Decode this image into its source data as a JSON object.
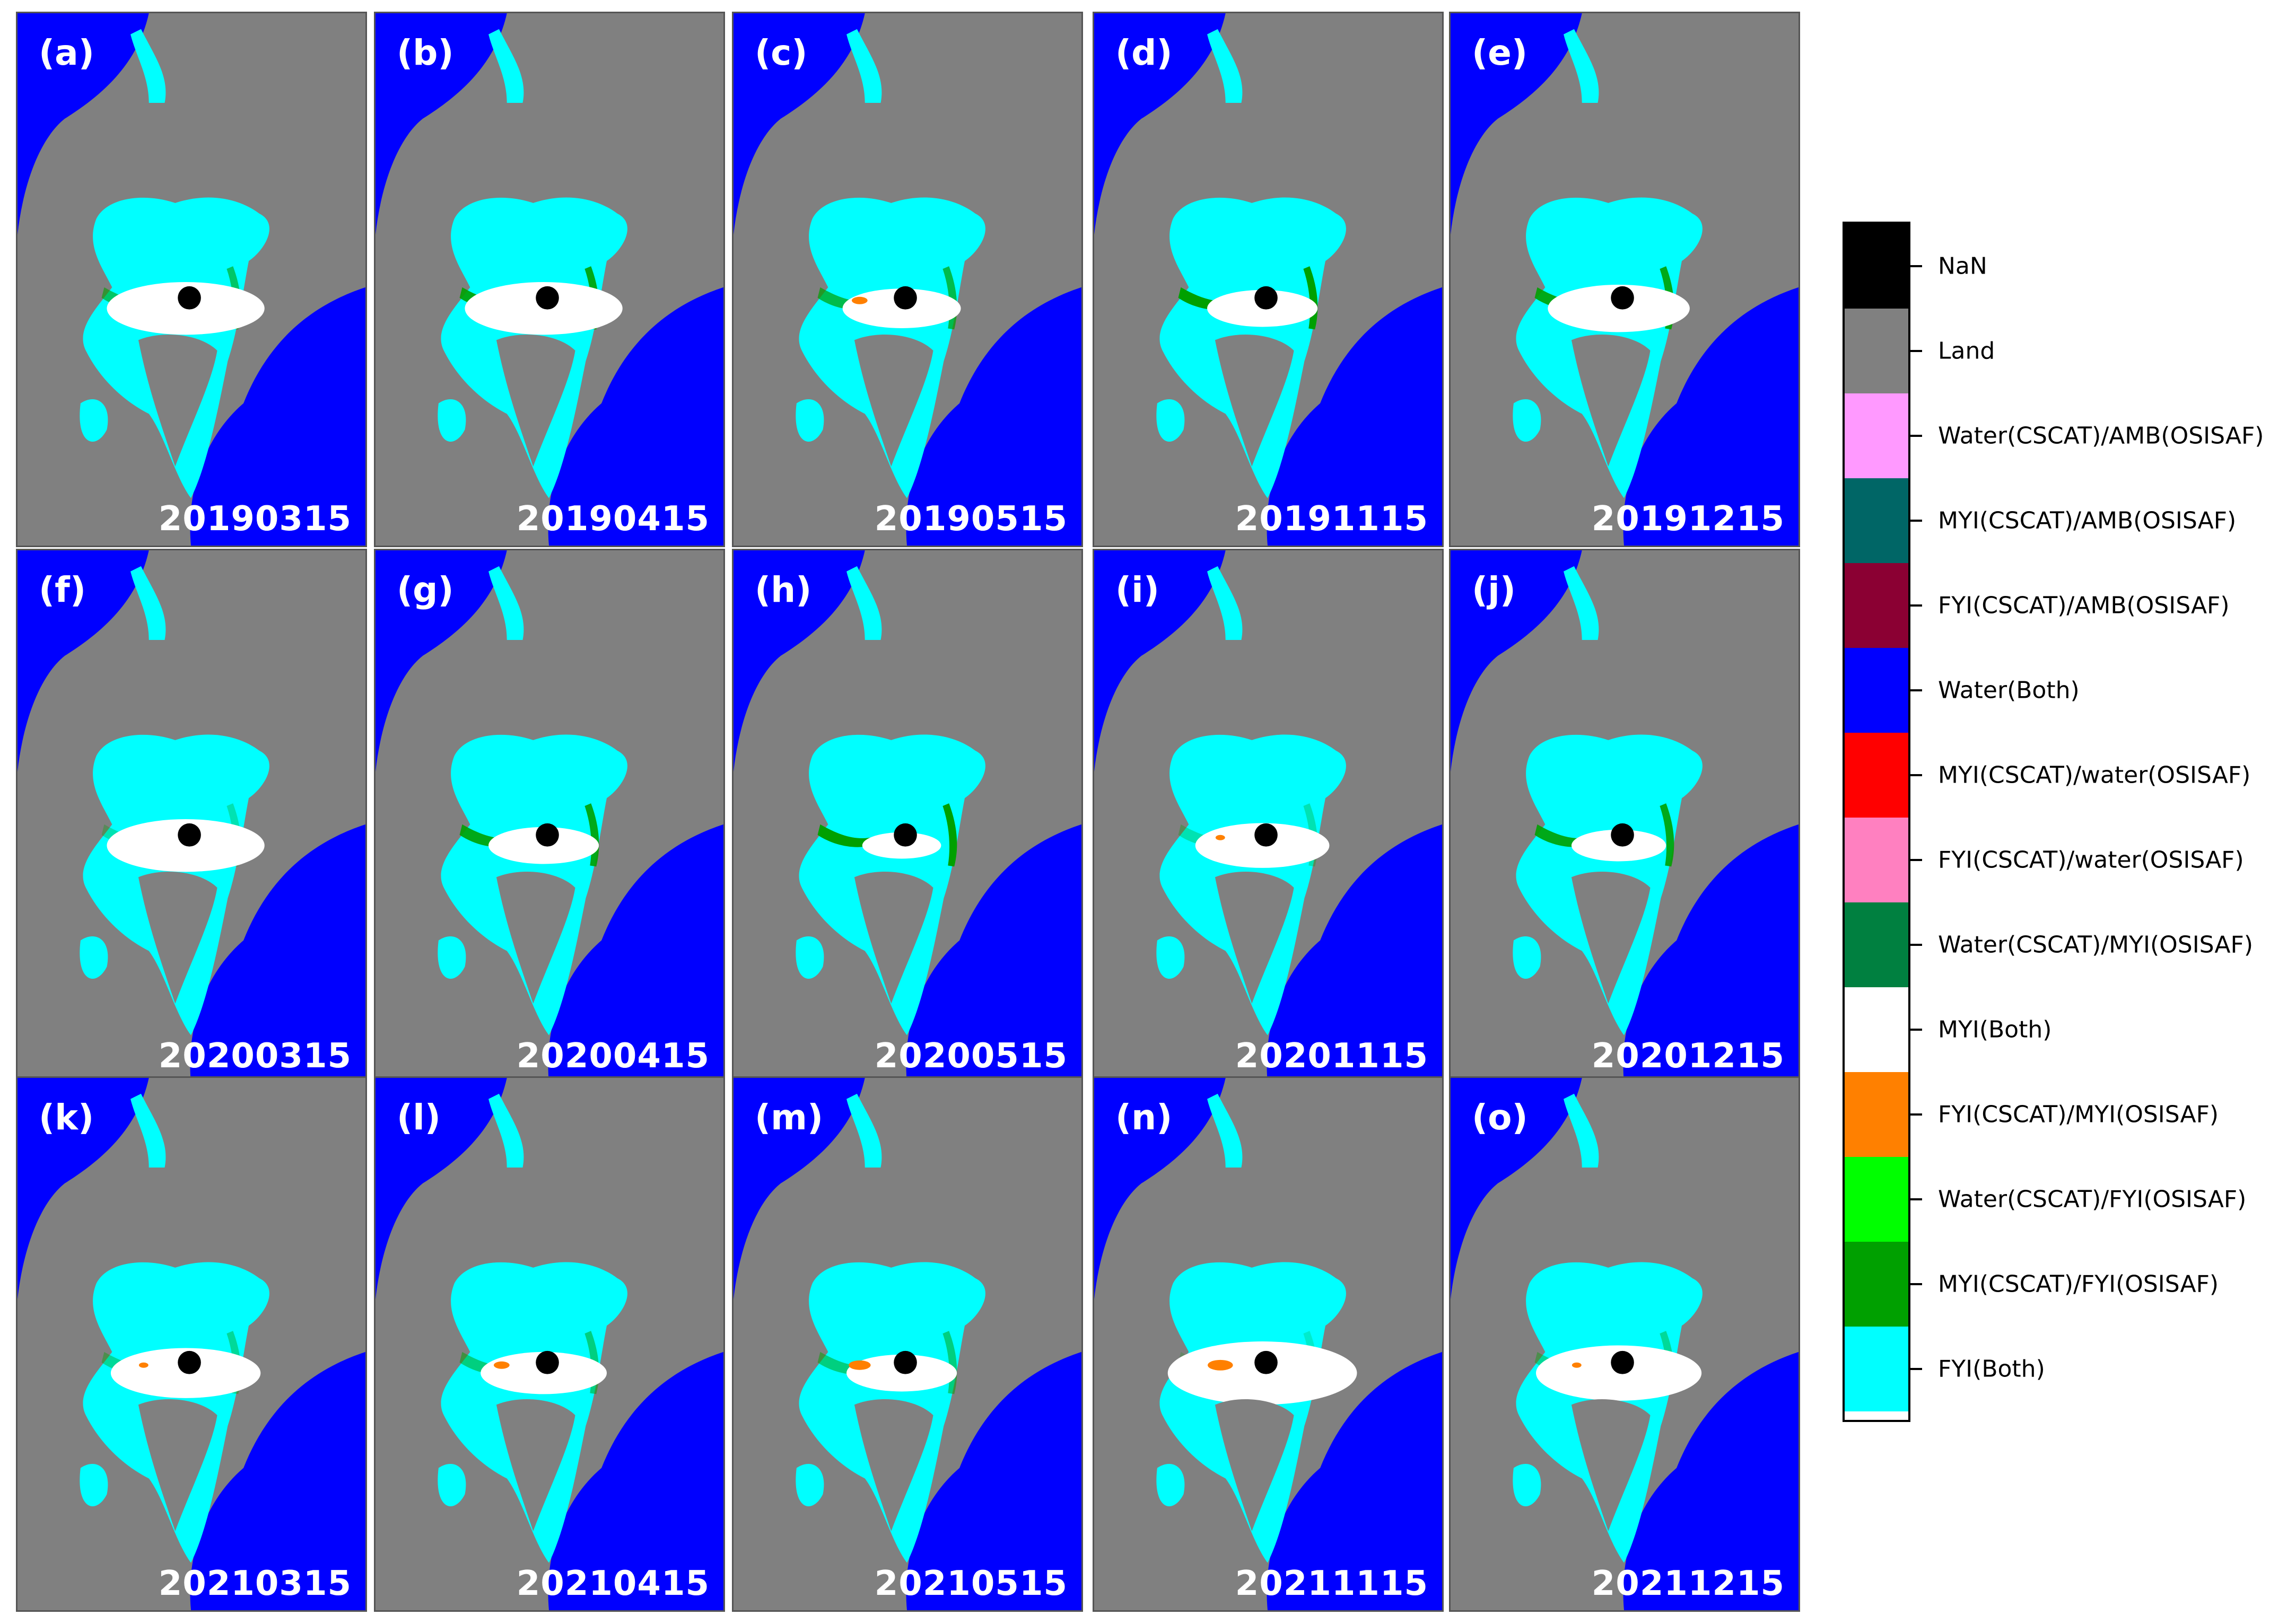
{
  "figure": {
    "panels": [
      {
        "letter": "(a)",
        "date": "20190315",
        "white": 1.0,
        "green": 0.6,
        "orange": 0.0
      },
      {
        "letter": "(b)",
        "date": "20190415",
        "white": 1.0,
        "green": 0.9,
        "orange": 0.0
      },
      {
        "letter": "(c)",
        "date": "20190515",
        "white": 0.75,
        "green": 0.7,
        "orange": 0.3
      },
      {
        "letter": "(d)",
        "date": "20191115",
        "white": 0.7,
        "green": 1.0,
        "orange": 0.0
      },
      {
        "letter": "(e)",
        "date": "20191215",
        "white": 0.9,
        "green": 0.9,
        "orange": 0.0
      },
      {
        "letter": "(f)",
        "date": "20200315",
        "white": 1.0,
        "green": 0.3,
        "orange": 0.0
      },
      {
        "letter": "(g)",
        "date": "20200415",
        "white": 0.7,
        "green": 0.9,
        "orange": 0.0
      },
      {
        "letter": "(h)",
        "date": "20200515",
        "white": 0.5,
        "green": 1.0,
        "orange": 0.0
      },
      {
        "letter": "(i)",
        "date": "20201115",
        "white": 0.85,
        "green": 0.3,
        "orange": 0.1
      },
      {
        "letter": "(j)",
        "date": "20201215",
        "white": 0.6,
        "green": 0.9,
        "orange": 0.0
      },
      {
        "letter": "(k)",
        "date": "20210315",
        "white": 0.95,
        "green": 0.4,
        "orange": 0.1
      },
      {
        "letter": "(l)",
        "date": "20210415",
        "white": 0.8,
        "green": 0.5,
        "orange": 0.3
      },
      {
        "letter": "(m)",
        "date": "20210515",
        "white": 0.7,
        "green": 0.5,
        "orange": 0.5
      },
      {
        "letter": "(n)",
        "date": "20211115",
        "white": 1.2,
        "green": 0.2,
        "orange": 0.6
      },
      {
        "letter": "(o)",
        "date": "20211215",
        "white": 1.05,
        "green": 0.4,
        "orange": 0.1
      }
    ]
  },
  "legend": {
    "items": [
      {
        "label": "NaN",
        "color": "#000000"
      },
      {
        "label": "Land",
        "color": "#808080"
      },
      {
        "label": "Water(CSCAT)/AMB(OSISAF)",
        "color": "#ff99ff"
      },
      {
        "label": "MYI(CSCAT)/AMB(OSISAF)",
        "color": "#006666"
      },
      {
        "label": "FYI(CSCAT)/AMB(OSISAF)",
        "color": "#8b0033"
      },
      {
        "label": "Water(Both)",
        "color": "#0000ff"
      },
      {
        "label": "MYI(CSCAT)/water(OSISAF)",
        "color": "#ff0000"
      },
      {
        "label": "FYI(CSCAT)/water(OSISAF)",
        "color": "#ff80c0"
      },
      {
        "label": "Water(CSCAT)/MYI(OSISAF)",
        "color": "#008040"
      },
      {
        "label": "MYI(Both)",
        "color": "#ffffff"
      },
      {
        "label": "FYI(CSCAT)/MYI(OSISAF)",
        "color": "#ff8000"
      },
      {
        "label": "Water(CSCAT)/FYI(OSISAF)",
        "color": "#00ff00"
      },
      {
        "label": "MYI(CSCAT)/FYI(OSISAF)",
        "color": "#00a000"
      },
      {
        "label": "FYI(Both)",
        "color": "#00ffff"
      }
    ]
  }
}
